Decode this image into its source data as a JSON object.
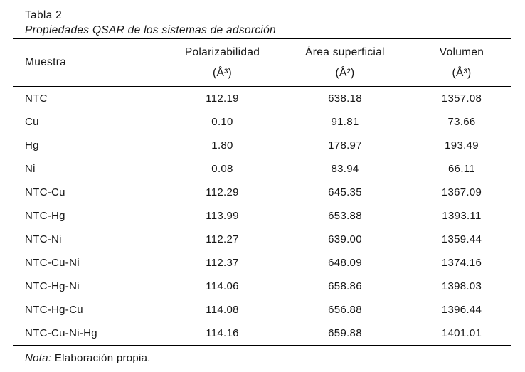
{
  "page": {
    "background_color": "#ffffff",
    "text_color": "#161616",
    "rule_color": "#000000"
  },
  "caption": {
    "table_number": "Tabla 2",
    "table_title": "Propiedades QSAR de los sistemas de adsorción"
  },
  "table": {
    "columns": [
      {
        "label": "Muestra",
        "unit": ""
      },
      {
        "label": "Polarizabilidad",
        "unit": "(Å³)"
      },
      {
        "label": "Área superficial",
        "unit": "(Å²)"
      },
      {
        "label": "Volumen",
        "unit": "(Å³)"
      }
    ],
    "rows": [
      {
        "muestra": "NTC",
        "polarizabilidad": "112.19",
        "area": "638.18",
        "volumen": "1357.08"
      },
      {
        "muestra": "Cu",
        "polarizabilidad": "0.10",
        "area": "91.81",
        "volumen": "73.66"
      },
      {
        "muestra": "Hg",
        "polarizabilidad": "1.80",
        "area": "178.97",
        "volumen": "193.49"
      },
      {
        "muestra": "Ni",
        "polarizabilidad": "0.08",
        "area": "83.94",
        "volumen": "66.11"
      },
      {
        "muestra": "NTC-Cu",
        "polarizabilidad": "112.29",
        "area": "645.35",
        "volumen": "1367.09"
      },
      {
        "muestra": "NTC-Hg",
        "polarizabilidad": "113.99",
        "area": "653.88",
        "volumen": "1393.11"
      },
      {
        "muestra": "NTC-Ni",
        "polarizabilidad": "112.27",
        "area": "639.00",
        "volumen": "1359.44"
      },
      {
        "muestra": "NTC-Cu-Ni",
        "polarizabilidad": "112.37",
        "area": "648.09",
        "volumen": "1374.16"
      },
      {
        "muestra": "NTC-Hg-Ni",
        "polarizabilidad": "114.06",
        "area": "658.86",
        "volumen": "1398.03"
      },
      {
        "muestra": "NTC-Hg-Cu",
        "polarizabilidad": "114.08",
        "area": "656.88",
        "volumen": "1396.44"
      },
      {
        "muestra": "NTC-Cu-Ni-Hg",
        "polarizabilidad": "114.16",
        "area": "659.88",
        "volumen": "1401.01"
      }
    ]
  },
  "note": {
    "label": "Nota:",
    "text": " Elaboración propia."
  }
}
